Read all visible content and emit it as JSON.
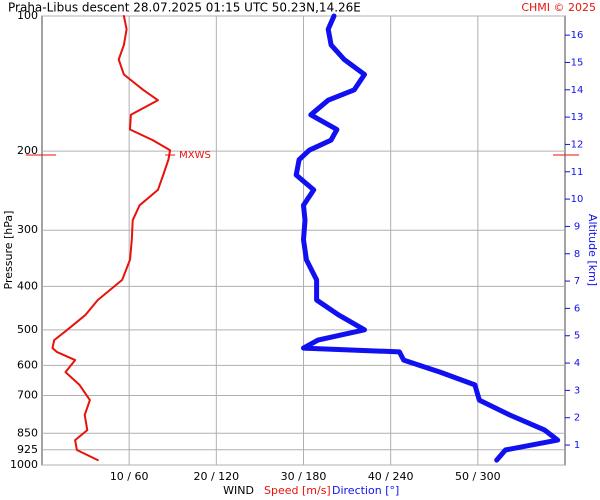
{
  "chart_data": {
    "type": "line",
    "title": "Praha-Libus  descent  28.07.2025 01:15 UTC  50.23N,14.26E",
    "credit": "CHMI © 2025",
    "ylabel": "Pressure [hPa]",
    "y2label": "Altitude [km]",
    "xlabel": "WIND",
    "xlabel_speed": "Speed [m/s]",
    "xlabel_direction": "Direction [°]",
    "y": [
      100,
      107,
      116,
      125,
      135,
      146,
      154,
      166,
      179,
      189,
      199,
      209,
      226,
      244,
      264,
      285,
      315,
      349,
      387,
      429,
      463,
      500,
      527,
      549,
      560,
      584,
      621,
      663,
      717,
      774,
      836,
      880,
      926,
      975
    ],
    "series": [
      {
        "name": "Speed [m/s]",
        "color": "#e8120c",
        "width": 2,
        "values": [
          9.4,
          9.7,
          9.4,
          8.8,
          9.4,
          11.6,
          13.3,
          10.2,
          10.1,
          12.7,
          14.7,
          14.5,
          13.9,
          13.3,
          11.2,
          10.4,
          10.3,
          10.1,
          9.2,
          6.4,
          5.0,
          2.9,
          1.4,
          1.2,
          1.7,
          3.8,
          2.7,
          4.3,
          5.5,
          4.9,
          5.2,
          3.8,
          4.0,
          6.4
        ]
      },
      {
        "name": "Direction [°]",
        "color": "#1010f0",
        "width": 5,
        "axis": "x2",
        "values": [
          201,
          197,
          199,
          208,
          222,
          215,
          197,
          185,
          203,
          199,
          184,
          177,
          175,
          187,
          180,
          181,
          180,
          182,
          189,
          189,
          204,
          222,
          190,
          180,
          246,
          249,
          274,
          298,
          301,
          322,
          346,
          355,
          319,
          313
        ]
      }
    ],
    "annotations": [
      {
        "text": "MXWS",
        "pressure": 204,
        "speed": 14.7
      }
    ],
    "xlim": [
      0,
      60
    ],
    "x2lim": [
      0,
      360
    ],
    "xticks": [
      {
        "value": 10,
        "label": "10 / 60"
      },
      {
        "value": 20,
        "label": "20 / 120"
      },
      {
        "value": 30,
        "label": "30 / 180"
      },
      {
        "value": 40,
        "label": "40 / 240"
      },
      {
        "value": 50,
        "label": "50 / 300"
      }
    ],
    "ylim": [
      100,
      1000
    ],
    "yscale": "log",
    "yinverted": true,
    "yticks": [
      100,
      200,
      300,
      400,
      500,
      600,
      700,
      850,
      925,
      1000
    ],
    "y2lim": [
      0.27,
      16.7
    ],
    "y2color": "#1010f0",
    "y2ticks": [
      1,
      2,
      3,
      4,
      5,
      6,
      7,
      8,
      9,
      10,
      11,
      12,
      13,
      14,
      15,
      16
    ],
    "grid": true
  }
}
